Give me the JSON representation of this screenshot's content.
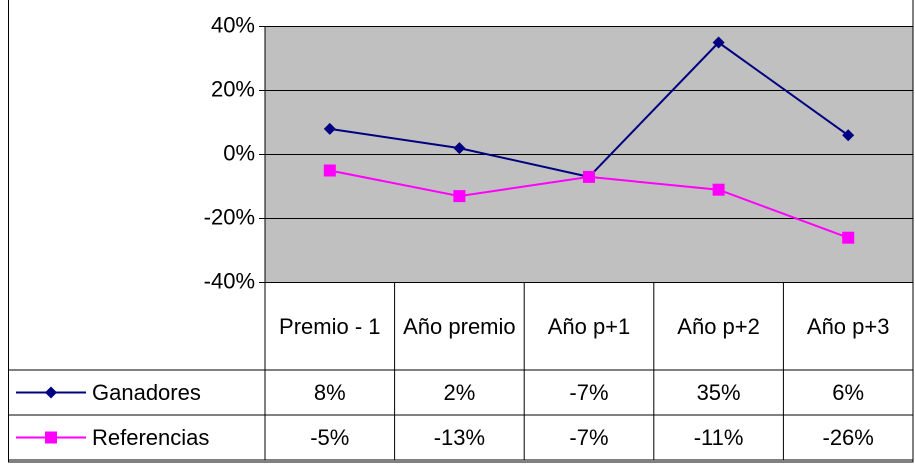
{
  "chart_data": {
    "type": "line",
    "categories": [
      "Premio - 1",
      "Año premio",
      "Año p+1",
      "Año p+2",
      "Año p+3"
    ],
    "series": [
      {
        "name": "Ganadores",
        "color": "#000080",
        "marker": "diamond",
        "values": [
          8,
          2,
          -7,
          35,
          6
        ],
        "value_labels": [
          "8%",
          "2%",
          "-7%",
          "35%",
          "6%"
        ]
      },
      {
        "name": "Referencias",
        "color": "#ff00ff",
        "marker": "square",
        "values": [
          -5,
          -13,
          -7,
          -11,
          -26
        ],
        "value_labels": [
          "-5%",
          "-13%",
          "-7%",
          "-11%",
          "-26%"
        ]
      }
    ],
    "ylim": [
      -40,
      40
    ],
    "yticks": [
      {
        "value": -40,
        "label": "-40%"
      },
      {
        "value": -20,
        "label": "-20%"
      },
      {
        "value": 0,
        "label": "0%"
      },
      {
        "value": 20,
        "label": "20%"
      },
      {
        "value": 40,
        "label": "40%"
      }
    ],
    "grid": true,
    "plot_background": "#c0c0c0"
  }
}
